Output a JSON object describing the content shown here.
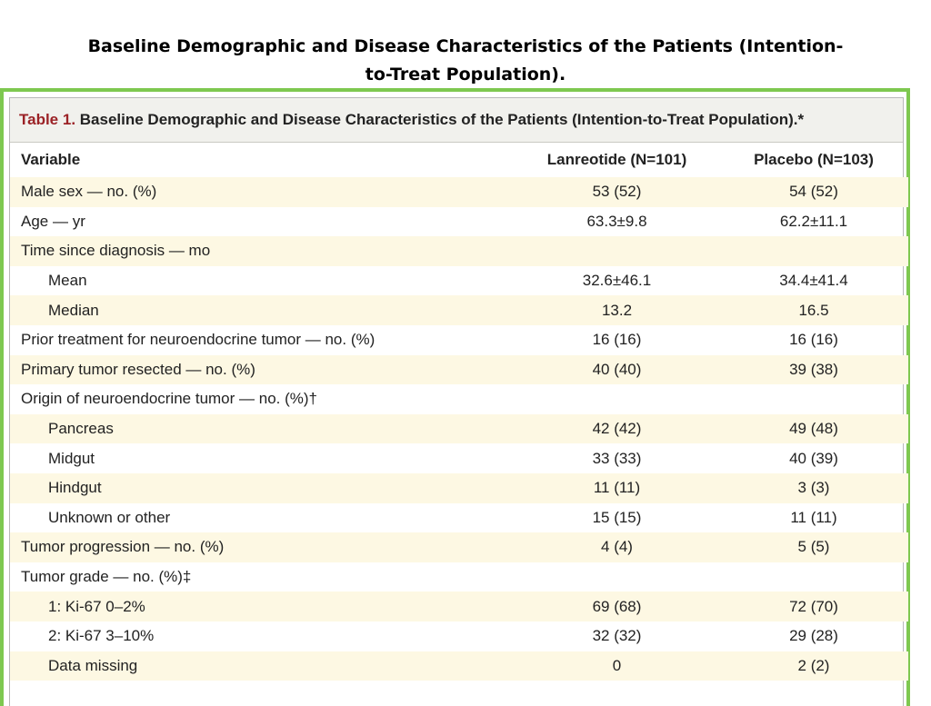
{
  "slide_title": {
    "line1": "Baseline Demographic and Disease Characteristics of the Patients (Intention-",
    "line2": "to-Treat Population)."
  },
  "table": {
    "label": "Table 1.",
    "title": "Baseline Demographic and Disease Characteristics of the Patients (Intention-to-Treat Population).*",
    "headers": [
      "Variable",
      "Lanreotide (N=101)",
      "Placebo (N=103)"
    ],
    "rows": [
      {
        "variable": "Male sex — no. (%)",
        "lanreotide": "53 (52)",
        "placebo": "54 (52)",
        "indent": false
      },
      {
        "variable": "Age — yr",
        "lanreotide": "63.3±9.8",
        "placebo": "62.2±11.1",
        "indent": false
      },
      {
        "variable": "Time since diagnosis — mo",
        "lanreotide": "",
        "placebo": "",
        "indent": false
      },
      {
        "variable": "Mean",
        "lanreotide": "32.6±46.1",
        "placebo": "34.4±41.4",
        "indent": true
      },
      {
        "variable": "Median",
        "lanreotide": "13.2",
        "placebo": "16.5",
        "indent": true
      },
      {
        "variable": "Prior treatment for neuroendocrine tumor — no. (%)",
        "lanreotide": "16 (16)",
        "placebo": "16 (16)",
        "indent": false
      },
      {
        "variable": "Primary tumor resected — no. (%)",
        "lanreotide": "40 (40)",
        "placebo": "39 (38)",
        "indent": false
      },
      {
        "variable": "Origin of neuroendocrine tumor — no. (%)†",
        "lanreotide": "",
        "placebo": "",
        "indent": false
      },
      {
        "variable": "Pancreas",
        "lanreotide": "42 (42)",
        "placebo": "49 (48)",
        "indent": true
      },
      {
        "variable": "Midgut",
        "lanreotide": "33 (33)",
        "placebo": "40 (39)",
        "indent": true
      },
      {
        "variable": "Hindgut",
        "lanreotide": "11 (11)",
        "placebo": "3 (3)",
        "indent": true
      },
      {
        "variable": "Unknown or other",
        "lanreotide": "15 (15)",
        "placebo": "11 (11)",
        "indent": true
      },
      {
        "variable": "Tumor progression — no. (%)",
        "lanreotide": "4 (4)",
        "placebo": "5 (5)",
        "indent": false
      },
      {
        "variable": "Tumor grade — no. (%)‡",
        "lanreotide": "",
        "placebo": "",
        "indent": false
      },
      {
        "variable": "1: Ki-67 0–2%",
        "lanreotide": "69 (68)",
        "placebo": "72 (70)",
        "indent": true
      },
      {
        "variable": "2: Ki-67 3–10%",
        "lanreotide": "32 (32)",
        "placebo": "29 (28)",
        "indent": true
      },
      {
        "variable": "Data missing",
        "lanreotide": "0",
        "placebo": "2 (2)",
        "indent": true
      }
    ]
  },
  "colors": {
    "frame_border": "#7ec850",
    "table_label": "#9b2226",
    "row_shade": "#fdf8e3",
    "caption_bg": "#f1f1ed"
  }
}
